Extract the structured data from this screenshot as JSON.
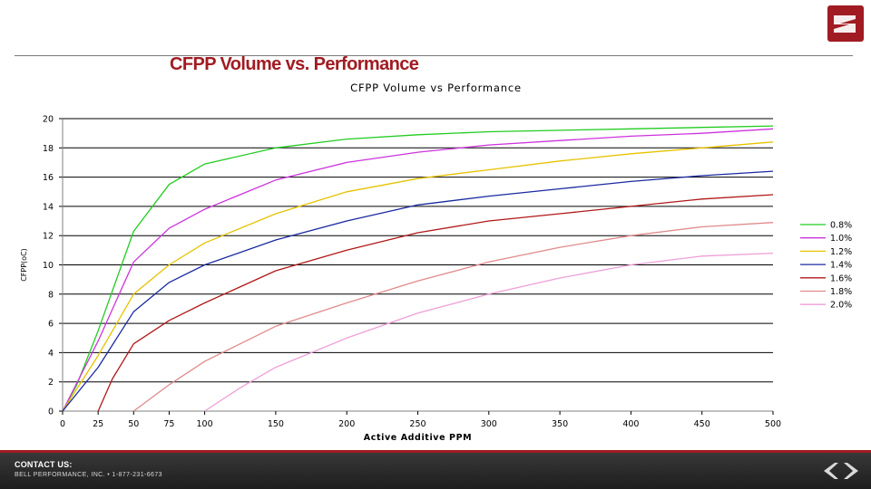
{
  "slide": {
    "title": "CFPP Volume vs. Performance"
  },
  "footer": {
    "contact_title": "CONTACT US:",
    "contact_line": "BELL PERFORMANCE, INC.  •  1-877-231-6673"
  },
  "icons": {
    "logo": "bell-logo-icon",
    "prev": "chevron-left-icon",
    "next": "chevron-right-icon"
  },
  "colors": {
    "brand_red": "#a01c22"
  },
  "chart_data": {
    "type": "line",
    "title": "CFPP Volume vs Performance",
    "xlabel": "Active Additive PPM",
    "ylabel": "CFPP(oC)",
    "xlim": [
      0,
      500
    ],
    "ylim": [
      0,
      20
    ],
    "xticks": [
      "0",
      "25",
      "50",
      "75",
      "100",
      "150",
      "200",
      "250",
      "300",
      "350",
      "400",
      "450",
      "500"
    ],
    "yticks": [
      "0",
      "2",
      "4",
      "6",
      "8",
      "10",
      "12",
      "14",
      "16",
      "18",
      "20"
    ],
    "grid": "horizontal",
    "legend_position": "right",
    "series": [
      {
        "name": "0.8%",
        "color": "#22cc22",
        "points": [
          [
            0,
            0
          ],
          [
            10,
            1.8
          ],
          [
            25,
            5.5
          ],
          [
            50,
            12.3
          ],
          [
            75,
            15.5
          ],
          [
            100,
            16.9
          ],
          [
            150,
            18.0
          ],
          [
            200,
            18.6
          ],
          [
            250,
            18.9
          ],
          [
            300,
            19.1
          ],
          [
            350,
            19.2
          ],
          [
            400,
            19.3
          ],
          [
            450,
            19.4
          ],
          [
            500,
            19.5
          ]
        ]
      },
      {
        "name": "1.0%",
        "color": "#cc33dd",
        "points": [
          [
            0,
            0
          ],
          [
            25,
            4.8
          ],
          [
            50,
            10.2
          ],
          [
            75,
            12.5
          ],
          [
            100,
            13.8
          ],
          [
            150,
            15.8
          ],
          [
            200,
            17.0
          ],
          [
            250,
            17.7
          ],
          [
            300,
            18.2
          ],
          [
            350,
            18.5
          ],
          [
            400,
            18.8
          ],
          [
            450,
            19.0
          ],
          [
            500,
            19.3
          ]
        ]
      },
      {
        "name": "1.2%",
        "color": "#e6c200",
        "points": [
          [
            0,
            0
          ],
          [
            25,
            3.8
          ],
          [
            50,
            8.0
          ],
          [
            75,
            10.0
          ],
          [
            100,
            11.5
          ],
          [
            150,
            13.5
          ],
          [
            200,
            15.0
          ],
          [
            250,
            15.9
          ],
          [
            300,
            16.5
          ],
          [
            350,
            17.1
          ],
          [
            400,
            17.6
          ],
          [
            450,
            18.0
          ],
          [
            500,
            18.4
          ]
        ]
      },
      {
        "name": "1.4%",
        "color": "#1a2aa0",
        "points": [
          [
            0,
            0
          ],
          [
            25,
            3.0
          ],
          [
            50,
            6.8
          ],
          [
            75,
            8.8
          ],
          [
            100,
            10.0
          ],
          [
            150,
            11.7
          ],
          [
            200,
            13.0
          ],
          [
            250,
            14.1
          ],
          [
            300,
            14.7
          ],
          [
            350,
            15.2
          ],
          [
            400,
            15.7
          ],
          [
            450,
            16.1
          ],
          [
            500,
            16.4
          ]
        ]
      },
      {
        "name": "1.6%",
        "color": "#b01818",
        "points": [
          [
            25,
            0
          ],
          [
            35,
            2.2
          ],
          [
            50,
            4.6
          ],
          [
            75,
            6.2
          ],
          [
            100,
            7.4
          ],
          [
            150,
            9.6
          ],
          [
            200,
            11.0
          ],
          [
            250,
            12.2
          ],
          [
            300,
            13.0
          ],
          [
            350,
            13.5
          ],
          [
            400,
            14.0
          ],
          [
            450,
            14.5
          ],
          [
            500,
            14.8
          ]
        ]
      },
      {
        "name": "1.8%",
        "color": "#e08a8a",
        "points": [
          [
            50,
            0
          ],
          [
            75,
            1.8
          ],
          [
            100,
            3.4
          ],
          [
            150,
            5.8
          ],
          [
            200,
            7.4
          ],
          [
            250,
            8.9
          ],
          [
            300,
            10.2
          ],
          [
            350,
            11.2
          ],
          [
            400,
            12.0
          ],
          [
            450,
            12.6
          ],
          [
            500,
            12.9
          ]
        ]
      },
      {
        "name": "2.0%",
        "color": "#ee9fd8",
        "points": [
          [
            100,
            0
          ],
          [
            125,
            1.6
          ],
          [
            150,
            3.0
          ],
          [
            200,
            5.0
          ],
          [
            250,
            6.7
          ],
          [
            300,
            8.0
          ],
          [
            350,
            9.1
          ],
          [
            400,
            10.0
          ],
          [
            450,
            10.6
          ],
          [
            500,
            10.8
          ]
        ]
      }
    ]
  }
}
